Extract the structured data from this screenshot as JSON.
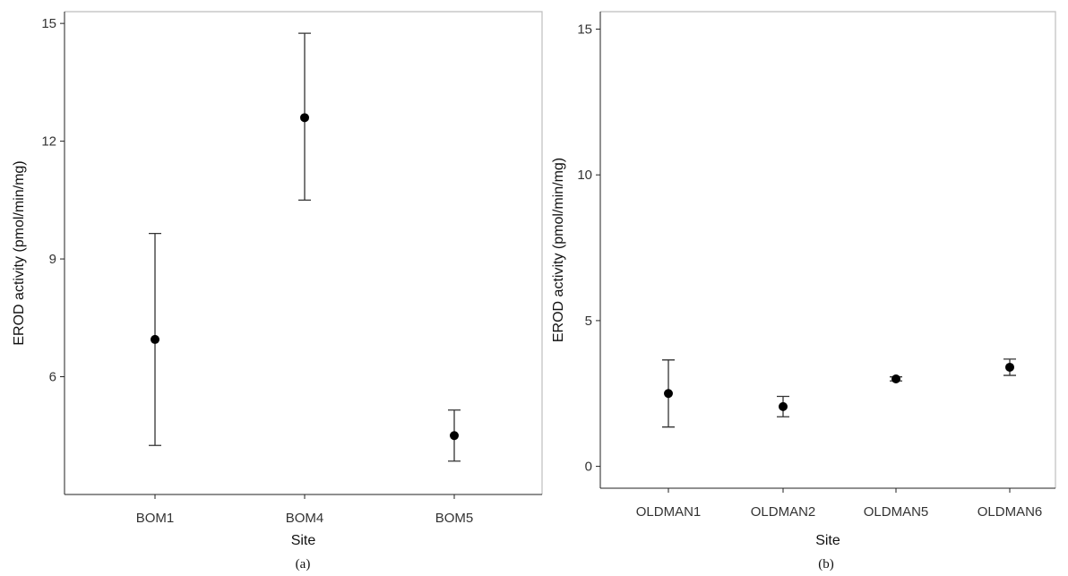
{
  "chart_data": [
    {
      "type": "scatter",
      "panel_label": "(a)",
      "xlabel": "Site",
      "ylabel": "EROD activity (pmol/min/mg)",
      "categories": [
        "BOM1",
        "BOM4",
        "BOM5"
      ],
      "yticks": [
        6,
        9,
        12,
        15
      ],
      "ylim": [
        3.0,
        15.3
      ],
      "grid": false,
      "error_bars": true,
      "series": [
        {
          "values": [
            6.95,
            12.6,
            4.5
          ],
          "lower": [
            4.25,
            10.5,
            3.85
          ],
          "upper": [
            9.65,
            14.75,
            5.15
          ]
        }
      ]
    },
    {
      "type": "scatter",
      "panel_label": "(b)",
      "xlabel": "Site",
      "ylabel": "EROD activity (pmol/min/mg)",
      "categories": [
        "OLDMAN1",
        "OLDMAN2",
        "OLDMAN5",
        "OLDMAN6"
      ],
      "yticks": [
        0,
        5,
        10,
        15
      ],
      "ylim": [
        -0.75,
        15.6
      ],
      "grid": false,
      "error_bars": true,
      "series": [
        {
          "values": [
            2.5,
            2.05,
            3.0,
            3.4
          ],
          "lower": [
            1.35,
            1.7,
            2.93,
            3.12
          ],
          "upper": [
            3.65,
            2.4,
            3.07,
            3.68
          ]
        }
      ]
    }
  ]
}
